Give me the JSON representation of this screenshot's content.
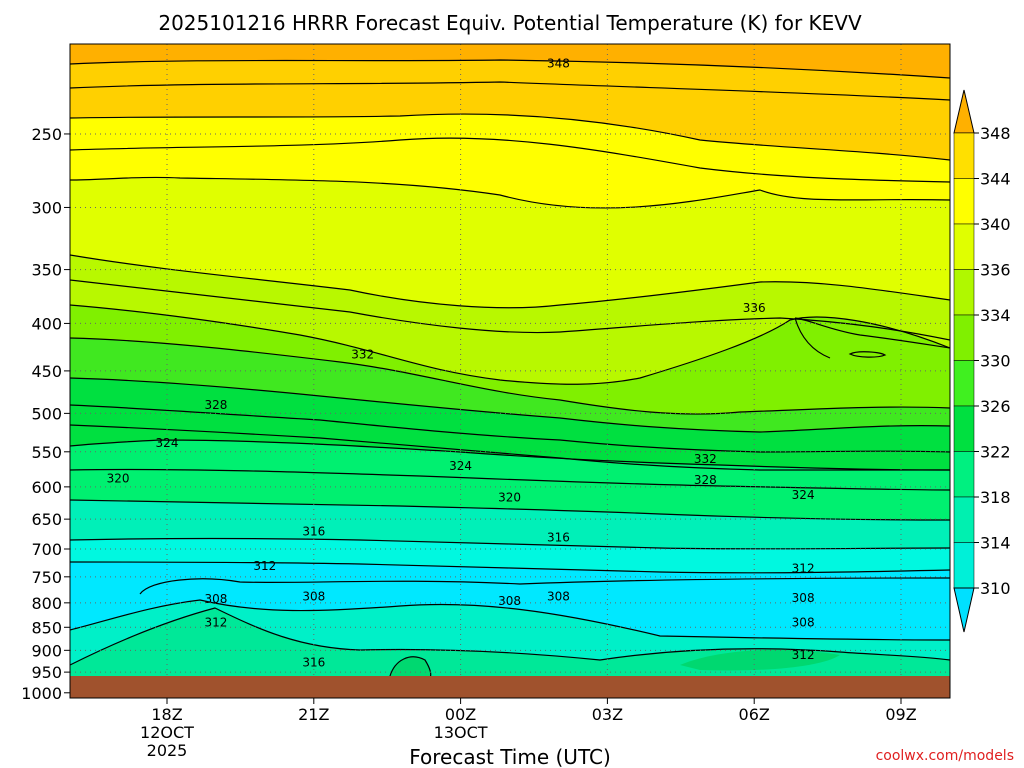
{
  "chart_data": {
    "type": "contour",
    "title": "2025101216 HRRR Forecast Equiv. Potential Temperature (K) for KEVV",
    "xlabel": "Forecast Time (UTC)",
    "credit": "coolwx.com/models",
    "y_axis": {
      "scale": "pressure (log-like, inverted)",
      "ticks": [
        "250",
        "300",
        "350",
        "400",
        "450",
        "500",
        "550",
        "600",
        "650",
        "700",
        "750",
        "800",
        "850",
        "900",
        "950",
        "1000"
      ],
      "range": [
        1013,
        200
      ]
    },
    "x_axis": {
      "ticks": [
        {
          "line1": "18Z",
          "line2": "12OCT",
          "line3": "2025"
        },
        {
          "line1": "21Z",
          "line2": "",
          "line3": ""
        },
        {
          "line1": "00Z",
          "line2": "13OCT",
          "line3": ""
        },
        {
          "line1": "03Z",
          "line2": "",
          "line3": ""
        },
        {
          "line1": "06Z",
          "line2": "",
          "line3": ""
        },
        {
          "line1": "09Z",
          "line2": "",
          "line3": ""
        }
      ]
    },
    "colorbar": {
      "levels": [
        "310",
        "314",
        "318",
        "322",
        "326",
        "330",
        "334",
        "336",
        "340",
        "344",
        "348"
      ],
      "colors": [
        "#00e0ff",
        "#00f0d8",
        "#00f0b0",
        "#00f080",
        "#00e040",
        "#40f020",
        "#80f000",
        "#b0f800",
        "#e0ff00",
        "#ffff00",
        "#ffe000",
        "#ffb000"
      ]
    },
    "contour_labels": [
      {
        "value": "348",
        "time": "02Z",
        "pressure": 210
      },
      {
        "value": "336",
        "time": "06Z",
        "pressure": 385
      },
      {
        "value": "332",
        "time": "22Z",
        "pressure": 432
      },
      {
        "value": "328",
        "time": "19Z",
        "pressure": 490
      },
      {
        "value": "324",
        "time": "18Z",
        "pressure": 538
      },
      {
        "value": "324",
        "time": "00Z",
        "pressure": 570
      },
      {
        "value": "332",
        "time": "05Z",
        "pressure": 560
      },
      {
        "value": "320",
        "time": "17Z",
        "pressure": 588
      },
      {
        "value": "328",
        "time": "05Z",
        "pressure": 590
      },
      {
        "value": "320",
        "time": "01Z",
        "pressure": 616
      },
      {
        "value": "324",
        "time": "07Z",
        "pressure": 612
      },
      {
        "value": "316",
        "time": "21Z",
        "pressure": 670
      },
      {
        "value": "316",
        "time": "02Z",
        "pressure": 680
      },
      {
        "value": "312",
        "time": "20Z",
        "pressure": 730
      },
      {
        "value": "312",
        "time": "07Z",
        "pressure": 735
      },
      {
        "value": "308",
        "time": "19Z",
        "pressure": 792
      },
      {
        "value": "308",
        "time": "21Z",
        "pressure": 788
      },
      {
        "value": "308",
        "time": "01Z",
        "pressure": 796
      },
      {
        "value": "308",
        "time": "02Z",
        "pressure": 788
      },
      {
        "value": "308",
        "time": "07Z",
        "pressure": 790
      },
      {
        "value": "312",
        "time": "19Z",
        "pressure": 840
      },
      {
        "value": "308",
        "time": "07Z",
        "pressure": 840
      },
      {
        "value": "316",
        "time": "21Z",
        "pressure": 928
      },
      {
        "value": "312",
        "time": "07Z",
        "pressure": 910
      }
    ]
  }
}
